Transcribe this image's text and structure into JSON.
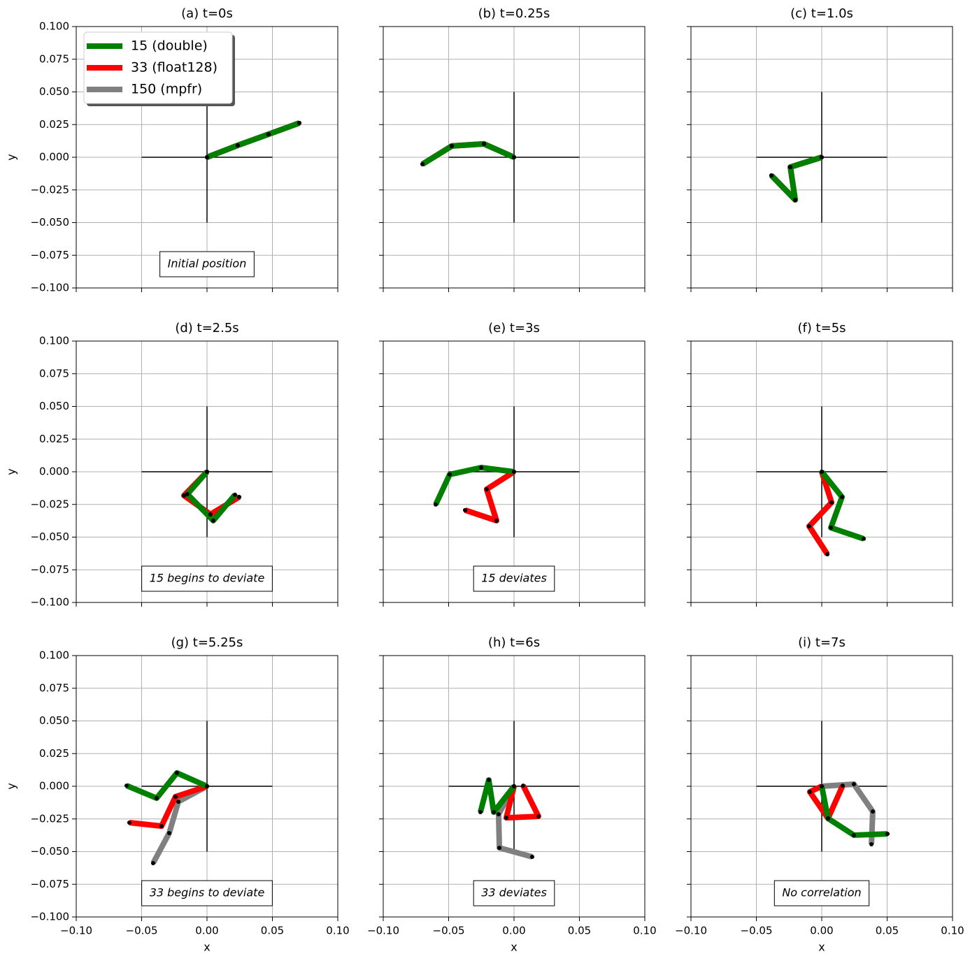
{
  "chart_data": [
    {
      "type": "line",
      "title": "(a) t=0s",
      "xlim": [
        -0.1,
        0.1
      ],
      "ylim": [
        -0.1,
        0.1
      ],
      "xticks": [
        -0.1,
        -0.05,
        0,
        0.05,
        0.1
      ],
      "yticks": [
        {
          "value": -0.1,
          "label": "−0.100"
        },
        {
          "value": -0.075,
          "label": "−0.075"
        },
        {
          "value": -0.05,
          "label": "−0.050"
        },
        {
          "value": -0.025,
          "label": "−0.025"
        },
        {
          "value": 0,
          "label": "0.000"
        },
        {
          "value": 0.025,
          "label": "0.025"
        },
        {
          "value": 0.05,
          "label": "0.050"
        },
        {
          "value": 0.075,
          "label": "0.075"
        },
        {
          "value": 0.1,
          "label": "0.100"
        }
      ],
      "ylabel": "y",
      "grid": true,
      "crosshair": 0.05,
      "annotation": "Initial position",
      "legend": "upper left",
      "series": [
        {
          "name": "15 (double)",
          "color": "#008000",
          "x": [
            0,
            0.0235,
            0.047,
            0.0706
          ],
          "values": [
            0,
            0.0091,
            0.0176,
            0.0262
          ]
        },
        {
          "name": "33 (float128)",
          "color": "#ff0000",
          "x": [
            0,
            0.0235,
            0.047,
            0.0706
          ],
          "values": [
            0,
            0.0091,
            0.0176,
            0.0262
          ]
        },
        {
          "name": "150 (mpfr)",
          "color": "#808080",
          "x": [
            0,
            0.0235,
            0.047,
            0.0706
          ],
          "values": [
            0,
            0.0091,
            0.0176,
            0.0262
          ]
        }
      ]
    },
    {
      "type": "line",
      "title": "(b) t=0.25s",
      "xlim": [
        -0.1,
        0.1
      ],
      "ylim": [
        -0.1,
        0.1
      ],
      "xticks": [
        -0.1,
        -0.05,
        0,
        0.05,
        0.1
      ],
      "yticks": [
        -0.1,
        -0.075,
        -0.05,
        -0.025,
        0,
        0.025,
        0.05,
        0.075,
        0.1
      ],
      "grid": true,
      "crosshair": 0.05,
      "series": [
        {
          "color": "#008000",
          "x": [
            0,
            -0.023,
            -0.0476,
            -0.07
          ],
          "values": [
            0,
            0.0102,
            0.0086,
            -0.0053
          ]
        },
        {
          "color": "#ff0000",
          "x": [
            0,
            -0.023,
            -0.0476,
            -0.07
          ],
          "values": [
            0,
            0.0102,
            0.0086,
            -0.0053
          ]
        },
        {
          "color": "#808080",
          "x": [
            0,
            -0.023,
            -0.0476,
            -0.07
          ],
          "values": [
            0,
            0.0102,
            0.0086,
            -0.0053
          ]
        }
      ]
    },
    {
      "type": "line",
      "title": "(c) t=1.0s",
      "xlim": [
        -0.1,
        0.1
      ],
      "ylim": [
        -0.1,
        0.1
      ],
      "xticks": [
        -0.1,
        -0.05,
        0,
        0.05,
        0.1
      ],
      "yticks": [
        -0.1,
        -0.075,
        -0.05,
        -0.025,
        0,
        0.025,
        0.05,
        0.075,
        0.1
      ],
      "grid": true,
      "crosshair": 0.05,
      "series": [
        {
          "color": "#008000",
          "x": [
            0,
            -0.024,
            -0.0203,
            -0.0385
          ],
          "values": [
            0,
            -0.0075,
            -0.0326,
            -0.0139
          ]
        },
        {
          "color": "#ff0000",
          "x": [
            0,
            -0.024,
            -0.0203,
            -0.0385
          ],
          "values": [
            0,
            -0.0075,
            -0.0326,
            -0.0139
          ]
        },
        {
          "color": "#808080",
          "x": [
            0,
            -0.024,
            -0.0203,
            -0.0385
          ],
          "values": [
            0,
            -0.0075,
            -0.0326,
            -0.0139
          ]
        }
      ]
    },
    {
      "type": "line",
      "title": "(d) t=2.5s",
      "xlim": [
        -0.1,
        0.1
      ],
      "ylim": [
        -0.1,
        0.1
      ],
      "xticks": [
        -0.1,
        -0.05,
        0,
        0.05,
        0.1
      ],
      "yticks": [
        {
          "value": -0.1,
          "label": "−0.100"
        },
        {
          "value": -0.075,
          "label": "−0.075"
        },
        {
          "value": -0.05,
          "label": "−0.050"
        },
        {
          "value": -0.025,
          "label": "−0.025"
        },
        {
          "value": 0,
          "label": "0.000"
        },
        {
          "value": 0.025,
          "label": "0.025"
        },
        {
          "value": 0.05,
          "label": "0.050"
        },
        {
          "value": 0.075,
          "label": "0.075"
        },
        {
          "value": 0.1,
          "label": "0.100"
        }
      ],
      "ylabel": "y",
      "grid": true,
      "crosshair": 0.05,
      "annotation": "15 begins to deviate",
      "series": [
        {
          "color": "#008000",
          "x": [
            0,
            -0.015,
            0.0048,
            0.0214
          ],
          "values": [
            0,
            -0.0171,
            -0.0374,
            -0.0176
          ]
        },
        {
          "color": "#ff0000",
          "x": [
            0,
            -0.0176,
            0.0027,
            0.0246
          ],
          "values": [
            0,
            -0.0182,
            -0.0326,
            -0.0193
          ]
        },
        {
          "color": "#808080",
          "x": [
            0,
            -0.0176,
            0.0027,
            0.0246
          ],
          "values": [
            0,
            -0.0182,
            -0.0326,
            -0.0193
          ]
        }
      ]
    },
    {
      "type": "line",
      "title": "(e) t=3s",
      "xlim": [
        -0.1,
        0.1
      ],
      "ylim": [
        -0.1,
        0.1
      ],
      "xticks": [
        -0.1,
        -0.05,
        0,
        0.05,
        0.1
      ],
      "yticks": [
        -0.1,
        -0.075,
        -0.05,
        -0.025,
        0,
        0.025,
        0.05,
        0.075,
        0.1
      ],
      "grid": true,
      "crosshair": 0.05,
      "annotation": "15 deviates",
      "series": [
        {
          "color": "#008000",
          "x": [
            0,
            -0.0251,
            -0.0492,
            -0.0599
          ],
          "values": [
            0,
            0.0032,
            -0.0021,
            -0.0251
          ]
        },
        {
          "color": "#ff0000",
          "x": [
            0,
            -0.0209,
            -0.0134,
            -0.0374
          ],
          "values": [
            0,
            -0.0134,
            -0.0374,
            -0.0294
          ]
        },
        {
          "color": "#808080",
          "x": [
            0,
            -0.0209,
            -0.0134,
            -0.0374
          ],
          "values": [
            0,
            -0.0134,
            -0.0374,
            -0.0294
          ]
        }
      ]
    },
    {
      "type": "line",
      "title": "(f) t=5s",
      "xlim": [
        -0.1,
        0.1
      ],
      "ylim": [
        -0.1,
        0.1
      ],
      "xticks": [
        -0.1,
        -0.05,
        0,
        0.05,
        0.1
      ],
      "yticks": [
        -0.1,
        -0.075,
        -0.05,
        -0.025,
        0,
        0.025,
        0.05,
        0.075,
        0.1
      ],
      "grid": true,
      "crosshair": 0.05,
      "series": [
        {
          "color": "#008000",
          "x": [
            0,
            0.0155,
            0.007,
            0.0321
          ],
          "values": [
            0,
            -0.0193,
            -0.0428,
            -0.0513
          ]
        },
        {
          "color": "#ff0000",
          "x": [
            0,
            0.0075,
            -0.0096,
            0.0043
          ],
          "values": [
            0,
            -0.0235,
            -0.0417,
            -0.0631
          ]
        },
        {
          "color": "#808080",
          "x": [
            0,
            0.0075,
            -0.0096,
            0.0043
          ],
          "values": [
            0,
            -0.0235,
            -0.0417,
            -0.0631
          ]
        }
      ]
    },
    {
      "type": "line",
      "title": "(g) t=5.25s",
      "xlim": [
        -0.1,
        0.1
      ],
      "ylim": [
        -0.1,
        0.1
      ],
      "xticks": [
        {
          "value": -0.1,
          "label": "−0.10"
        },
        {
          "value": -0.05,
          "label": "−0.05"
        },
        {
          "value": 0,
          "label": "0.00"
        },
        {
          "value": 0.05,
          "label": "0.05"
        },
        {
          "value": 0.1,
          "label": "0.10"
        }
      ],
      "yticks": [
        {
          "value": -0.1,
          "label": "−0.100"
        },
        {
          "value": -0.075,
          "label": "−0.075"
        },
        {
          "value": -0.05,
          "label": "−0.050"
        },
        {
          "value": -0.025,
          "label": "−0.025"
        },
        {
          "value": 0,
          "label": "0.000"
        },
        {
          "value": 0.025,
          "label": "0.025"
        },
        {
          "value": 0.05,
          "label": "0.050"
        },
        {
          "value": 0.075,
          "label": "0.075"
        },
        {
          "value": 0.1,
          "label": "0.100"
        }
      ],
      "xlabel": "x",
      "ylabel": "y",
      "grid": true,
      "crosshair": 0.05,
      "annotation": "33 begins to deviate",
      "series": [
        {
          "color": "#008000",
          "x": [
            0,
            -0.023,
            -0.0385,
            -0.0615
          ],
          "values": [
            0,
            0.0102,
            -0.0091,
            0.0005
          ]
        },
        {
          "color": "#ff0000",
          "x": [
            0,
            -0.0241,
            -0.0348,
            -0.0594
          ],
          "values": [
            0,
            -0.008,
            -0.0305,
            -0.0278
          ]
        },
        {
          "color": "#808080",
          "x": [
            0,
            -0.0219,
            -0.0289,
            -0.0412
          ],
          "values": [
            0,
            -0.0118,
            -0.0358,
            -0.0588
          ]
        }
      ]
    },
    {
      "type": "line",
      "title": "(h) t=6s",
      "xlim": [
        -0.1,
        0.1
      ],
      "ylim": [
        -0.1,
        0.1
      ],
      "xticks": [
        {
          "value": -0.1,
          "label": "−0.10"
        },
        {
          "value": -0.05,
          "label": "−0.05"
        },
        {
          "value": 0,
          "label": "0.00"
        },
        {
          "value": 0.05,
          "label": "0.05"
        },
        {
          "value": 0.1,
          "label": "0.10"
        }
      ],
      "yticks": [
        -0.1,
        -0.075,
        -0.05,
        -0.025,
        0,
        0.025,
        0.05,
        0.075,
        0.1
      ],
      "xlabel": "x",
      "grid": true,
      "crosshair": 0.05,
      "annotation": "33 deviates",
      "series": [
        {
          "color": "#008000",
          "x": [
            0,
            -0.0155,
            -0.0193,
            -0.0257
          ],
          "values": [
            0,
            -0.0198,
            0.0048,
            -0.0198
          ]
        },
        {
          "color": "#ff0000",
          "x": [
            0,
            -0.0059,
            0.0187,
            0.007
          ],
          "values": [
            0,
            -0.0241,
            -0.023,
            0.0005
          ]
        },
        {
          "color": "#808080",
          "x": [
            0,
            -0.0118,
            -0.0112,
            0.0139
          ],
          "values": [
            0,
            -0.0214,
            -0.0471,
            -0.054
          ]
        }
      ]
    },
    {
      "type": "line",
      "title": "(i) t=7s",
      "xlim": [
        -0.1,
        0.1
      ],
      "ylim": [
        -0.1,
        0.1
      ],
      "xticks": [
        {
          "value": -0.1,
          "label": "−0.10"
        },
        {
          "value": -0.05,
          "label": "−0.05"
        },
        {
          "value": 0,
          "label": "0.00"
        },
        {
          "value": 0.05,
          "label": "0.05"
        },
        {
          "value": 0.1,
          "label": "0.10"
        }
      ],
      "yticks": [
        -0.1,
        -0.075,
        -0.05,
        -0.025,
        0,
        0.025,
        0.05,
        0.075,
        0.1
      ],
      "xlabel": "x",
      "grid": true,
      "crosshair": 0.05,
      "annotation": "No correlation",
      "series": [
        {
          "color": "#008000",
          "x": [
            0,
            0.0048,
            0.0246,
            0.0503
          ],
          "values": [
            0,
            -0.0246,
            -0.0374,
            -0.0364
          ]
        },
        {
          "color": "#ff0000",
          "x": [
            0,
            -0.0091,
            0.0048,
            0.016
          ],
          "values": [
            0,
            -0.0043,
            -0.0246,
            0.0005
          ]
        },
        {
          "color": "#808080",
          "x": [
            0,
            0.0246,
            0.039,
            0.038
          ],
          "values": [
            0,
            0.0016,
            -0.0193,
            -0.0444
          ]
        }
      ]
    }
  ]
}
